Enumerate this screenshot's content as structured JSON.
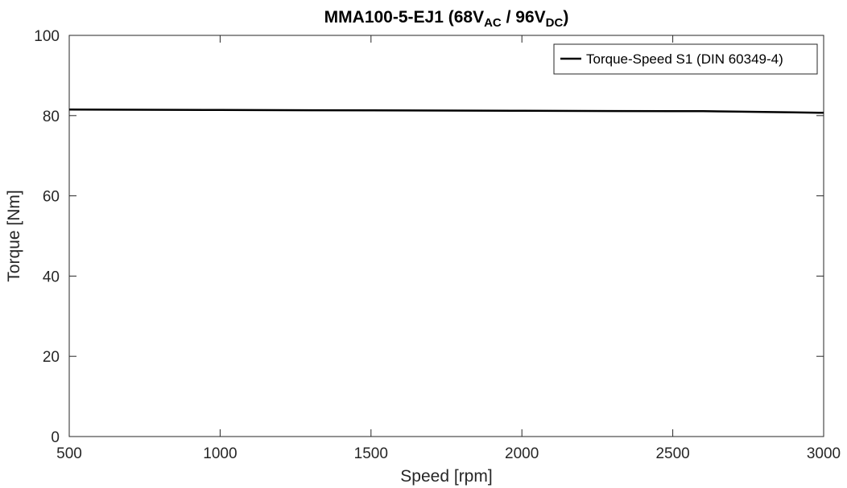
{
  "chart_data": {
    "type": "line",
    "title": {
      "prefix": "MMA100-5-EJ1 (68V",
      "sub1": "AC",
      "middle": " / 96V",
      "sub2": "DC",
      "suffix": ")"
    },
    "xlabel": "Speed [rpm]",
    "ylabel": "Torque [Nm]",
    "xlim": [
      500,
      3000
    ],
    "ylim": [
      0,
      100
    ],
    "xticks": [
      500,
      1000,
      1500,
      2000,
      2500,
      3000
    ],
    "yticks": [
      0,
      20,
      40,
      60,
      80,
      100
    ],
    "grid": false,
    "legend_position": "top-right",
    "series": [
      {
        "name": "Torque-Speed S1 (DIN 60349-4)",
        "color": "#000000",
        "x": [
          500,
          1000,
          1500,
          2000,
          2500,
          2600,
          2700,
          2800,
          2900,
          3000
        ],
        "y": [
          81.5,
          81.4,
          81.3,
          81.2,
          81.1,
          81.1,
          81.0,
          80.9,
          80.8,
          80.7
        ]
      }
    ]
  }
}
